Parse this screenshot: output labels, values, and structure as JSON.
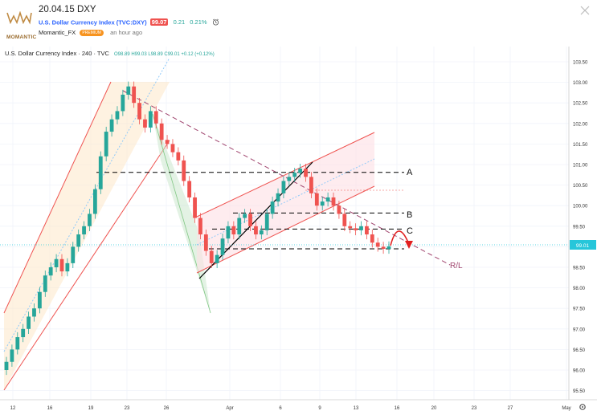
{
  "header": {
    "title": "20.04.15 DXY",
    "logo_text": "MOMANTIC",
    "symbol": "U.S. Dollar Currency Index (TVC:DXY)",
    "price": "99.07",
    "change": "0.21",
    "change_pct": "0.21%",
    "author": "Momantic_FX",
    "badge": "PREMIUM",
    "time": "an hour ago"
  },
  "legend": {
    "title": "U.S. Dollar Currency Index · 240 · TVC",
    "ohlc": "O98.89  H99.03  L98.89  C99.01  +0.12 (+0.12%)"
  },
  "price_label": "99.01",
  "annotations": {
    "a": "A",
    "b": "B",
    "c": "C",
    "rl": "R/L"
  },
  "colors": {
    "up": "#26a69a",
    "down": "#ef5350",
    "channel": "#ef5350",
    "level": "#000000",
    "last_price": "#26c6da",
    "trend_dash": "#a0446e",
    "arrow": "#e02020",
    "green_channel": "#a5d6a7"
  },
  "chart_data": {
    "type": "candlestick",
    "y_axis": [
      "103.50",
      "103.00",
      "102.50",
      "102.00",
      "101.50",
      "101.00",
      "100.50",
      "100.00",
      "99.50",
      "99.00",
      "98.50",
      "98.00",
      "97.50",
      "97.00",
      "96.50",
      "96.00",
      "95.50"
    ],
    "x_axis": [
      "12",
      "16",
      "19",
      "23",
      "26",
      "Apr",
      "6",
      "9",
      "13",
      "16",
      "20",
      "23",
      "27",
      "May"
    ],
    "levels": {
      "A": 100.81,
      "B": 99.82,
      "C": 99.43,
      "D": 98.95
    },
    "last_price": 99.01,
    "candles_close": [
      96.2,
      96.5,
      96.8,
      97.0,
      97.3,
      97.5,
      97.9,
      98.3,
      98.5,
      98.7,
      98.4,
      98.6,
      99.0,
      99.3,
      99.5,
      99.8,
      100.4,
      101.2,
      101.8,
      102.1,
      102.3,
      102.7,
      102.9,
      102.5,
      102.1,
      101.9,
      102.3,
      102.0,
      101.6,
      101.5,
      101.3,
      101.1,
      100.6,
      100.2,
      99.7,
      99.3,
      98.9,
      98.6,
      98.8,
      99.2,
      99.5,
      99.3,
      99.7,
      99.8,
      99.5,
      99.3,
      99.4,
      99.8,
      100.1,
      100.3,
      100.6,
      100.7,
      100.8,
      100.9,
      100.7,
      100.3,
      100.0,
      100.1,
      100.2,
      100.0,
      99.8,
      99.5,
      99.45,
      99.4,
      99.5,
      99.3,
      99.1,
      99.0,
      98.95,
      99.01
    ]
  }
}
